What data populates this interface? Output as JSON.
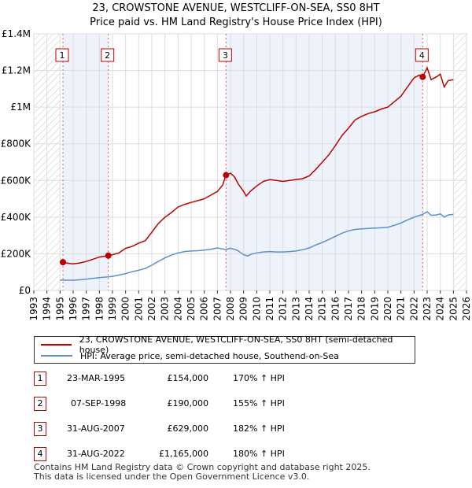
{
  "chart_data": {
    "type": "line",
    "title": "23, CROWSTONE AVENUE, WESTCLIFF-ON-SEA, SS0 8HT",
    "subtitle": "Price paid vs. HM Land Registry's House Price Index (HPI)",
    "xlim": [
      1993,
      2026
    ],
    "ylim": [
      0,
      1400000
    ],
    "x_ticks": [
      "1993",
      "1994",
      "1995",
      "1996",
      "1997",
      "1998",
      "1999",
      "2000",
      "2001",
      "2002",
      "2003",
      "2004",
      "2005",
      "2006",
      "2007",
      "2008",
      "2009",
      "2010",
      "2011",
      "2012",
      "2013",
      "2014",
      "2015",
      "2016",
      "2017",
      "2018",
      "2019",
      "2020",
      "2021",
      "2022",
      "2023",
      "2024",
      "2025",
      "2026"
    ],
    "y_ticks": [
      {
        "value": 0,
        "label": "£0"
      },
      {
        "value": 200000,
        "label": "£200K"
      },
      {
        "value": 400000,
        "label": "£400K"
      },
      {
        "value": 600000,
        "label": "£600K"
      },
      {
        "value": 800000,
        "label": "£800K"
      },
      {
        "value": 1000000,
        "label": "£1M"
      },
      {
        "value": 1200000,
        "label": "£1.2M"
      },
      {
        "value": 1400000,
        "label": "£1.4M"
      }
    ],
    "hatch_before": 1995.0,
    "hatch_after": 2025.0,
    "shaded_ranges": [
      [
        1995.22,
        1998.68
      ],
      [
        2007.66,
        2022.66
      ]
    ],
    "series": [
      {
        "name": "23, CROWSTONE AVENUE, WESTCLIFF-ON-SEA, SS0 8HT (semi-detached house)",
        "color": "#c00000",
        "points": [
          [
            1995.22,
            154000
          ],
          [
            1995.6,
            148000
          ],
          [
            1996.0,
            145000
          ],
          [
            1996.5,
            150000
          ],
          [
            1997.0,
            158000
          ],
          [
            1997.5,
            170000
          ],
          [
            1998.0,
            182000
          ],
          [
            1998.68,
            190000
          ],
          [
            1999.0,
            195000
          ],
          [
            1999.5,
            205000
          ],
          [
            2000.0,
            230000
          ],
          [
            2000.5,
            240000
          ],
          [
            2001.0,
            258000
          ],
          [
            2001.5,
            272000
          ],
          [
            2002.0,
            318000
          ],
          [
            2002.5,
            365000
          ],
          [
            2003.0,
            400000
          ],
          [
            2003.5,
            425000
          ],
          [
            2004.0,
            455000
          ],
          [
            2004.5,
            470000
          ],
          [
            2005.0,
            480000
          ],
          [
            2005.5,
            490000
          ],
          [
            2006.0,
            500000
          ],
          [
            2006.5,
            520000
          ],
          [
            2007.0,
            540000
          ],
          [
            2007.4,
            575000
          ],
          [
            2007.66,
            629000
          ],
          [
            2008.0,
            640000
          ],
          [
            2008.3,
            620000
          ],
          [
            2008.6,
            580000
          ],
          [
            2009.0,
            540000
          ],
          [
            2009.2,
            515000
          ],
          [
            2009.5,
            540000
          ],
          [
            2010.0,
            570000
          ],
          [
            2010.5,
            595000
          ],
          [
            2011.0,
            605000
          ],
          [
            2011.5,
            600000
          ],
          [
            2012.0,
            595000
          ],
          [
            2012.5,
            600000
          ],
          [
            2013.0,
            605000
          ],
          [
            2013.5,
            610000
          ],
          [
            2014.0,
            625000
          ],
          [
            2014.5,
            660000
          ],
          [
            2015.0,
            700000
          ],
          [
            2015.5,
            740000
          ],
          [
            2016.0,
            790000
          ],
          [
            2016.5,
            845000
          ],
          [
            2017.0,
            885000
          ],
          [
            2017.5,
            930000
          ],
          [
            2018.0,
            950000
          ],
          [
            2018.5,
            965000
          ],
          [
            2019.0,
            975000
          ],
          [
            2019.5,
            990000
          ],
          [
            2020.0,
            1000000
          ],
          [
            2020.5,
            1030000
          ],
          [
            2021.0,
            1060000
          ],
          [
            2021.5,
            1110000
          ],
          [
            2022.0,
            1160000
          ],
          [
            2022.4,
            1175000
          ],
          [
            2022.66,
            1165000
          ],
          [
            2022.9,
            1200000
          ],
          [
            2023.0,
            1215000
          ],
          [
            2023.3,
            1150000
          ],
          [
            2023.7,
            1165000
          ],
          [
            2024.0,
            1180000
          ],
          [
            2024.3,
            1110000
          ],
          [
            2024.6,
            1145000
          ],
          [
            2025.0,
            1150000
          ]
        ]
      },
      {
        "name": "HPI: Average price, semi-detached house, Southend-on-Sea",
        "color": "#5b8fce",
        "points": [
          [
            1995.0,
            57000
          ],
          [
            1995.5,
            56000
          ],
          [
            1996.0,
            56000
          ],
          [
            1996.5,
            58000
          ],
          [
            1997.0,
            62000
          ],
          [
            1997.5,
            66000
          ],
          [
            1998.0,
            70000
          ],
          [
            1998.68,
            74000
          ],
          [
            1999.0,
            77000
          ],
          [
            1999.5,
            84000
          ],
          [
            2000.0,
            92000
          ],
          [
            2000.5,
            102000
          ],
          [
            2001.0,
            110000
          ],
          [
            2001.5,
            120000
          ],
          [
            2002.0,
            138000
          ],
          [
            2002.5,
            158000
          ],
          [
            2003.0,
            178000
          ],
          [
            2003.5,
            193000
          ],
          [
            2004.0,
            205000
          ],
          [
            2004.5,
            212000
          ],
          [
            2005.0,
            215000
          ],
          [
            2005.5,
            217000
          ],
          [
            2006.0,
            220000
          ],
          [
            2006.5,
            225000
          ],
          [
            2007.0,
            232000
          ],
          [
            2007.66,
            223000
          ],
          [
            2008.0,
            230000
          ],
          [
            2008.5,
            220000
          ],
          [
            2009.0,
            195000
          ],
          [
            2009.3,
            188000
          ],
          [
            2009.6,
            198000
          ],
          [
            2010.0,
            205000
          ],
          [
            2010.5,
            210000
          ],
          [
            2011.0,
            212000
          ],
          [
            2011.5,
            210000
          ],
          [
            2012.0,
            210000
          ],
          [
            2012.5,
            212000
          ],
          [
            2013.0,
            215000
          ],
          [
            2013.5,
            222000
          ],
          [
            2014.0,
            232000
          ],
          [
            2014.5,
            248000
          ],
          [
            2015.0,
            262000
          ],
          [
            2015.5,
            278000
          ],
          [
            2016.0,
            295000
          ],
          [
            2016.5,
            312000
          ],
          [
            2017.0,
            325000
          ],
          [
            2017.5,
            333000
          ],
          [
            2018.0,
            336000
          ],
          [
            2018.5,
            338000
          ],
          [
            2019.0,
            340000
          ],
          [
            2019.5,
            342000
          ],
          [
            2020.0,
            345000
          ],
          [
            2020.5,
            355000
          ],
          [
            2021.0,
            368000
          ],
          [
            2021.5,
            385000
          ],
          [
            2022.0,
            400000
          ],
          [
            2022.66,
            415000
          ],
          [
            2023.0,
            430000
          ],
          [
            2023.3,
            410000
          ],
          [
            2023.7,
            412000
          ],
          [
            2024.0,
            418000
          ],
          [
            2024.3,
            400000
          ],
          [
            2024.6,
            412000
          ],
          [
            2025.0,
            415000
          ]
        ]
      }
    ],
    "markers": [
      {
        "label": "1",
        "x": 1995.22,
        "y": 154000
      },
      {
        "label": "2",
        "x": 1998.68,
        "y": 190000
      },
      {
        "label": "3",
        "x": 2007.66,
        "y": 629000
      },
      {
        "label": "4",
        "x": 2022.66,
        "y": 1165000
      }
    ]
  },
  "legend": {
    "property_label": "23, CROWSTONE AVENUE, WESTCLIFF-ON-SEA, SS0 8HT (semi-detached house)",
    "hpi_label": "HPI: Average price, semi-detached house, Southend-on-Sea"
  },
  "sales": [
    {
      "num": "1",
      "date": "23-MAR-1995",
      "price": "£154,000",
      "hpi": "170% ↑ HPI"
    },
    {
      "num": "2",
      "date": "07-SEP-1998",
      "price": "£190,000",
      "hpi": "155% ↑ HPI"
    },
    {
      "num": "3",
      "date": "31-AUG-2007",
      "price": "£629,000",
      "hpi": "182% ↑ HPI"
    },
    {
      "num": "4",
      "date": "31-AUG-2022",
      "price": "£1,165,000",
      "hpi": "180% ↑ HPI"
    }
  ],
  "footer": {
    "line1": "Contains HM Land Registry data © Crown copyright and database right 2025.",
    "line2": "This data is licensed under the Open Government Licence v3.0."
  },
  "colors": {
    "property": "#c00000",
    "hpi": "#5b8fce",
    "shade": "#eef2fb",
    "grid": "#dddddd"
  }
}
